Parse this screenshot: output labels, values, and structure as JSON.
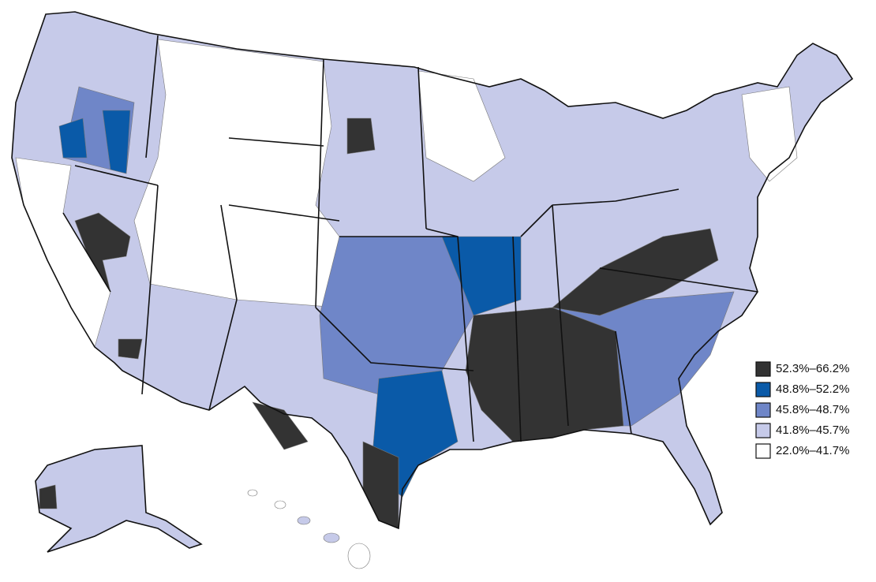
{
  "legend": {
    "items": [
      {
        "label": "52.3%–66.2%",
        "color": "#333333"
      },
      {
        "label": "48.8%–52.2%",
        "color": "#0a5aa8"
      },
      {
        "label": "45.8%–48.7%",
        "color": "#6f86c8"
      },
      {
        "label": "41.8%–45.7%",
        "color": "#c6cae9"
      },
      {
        "label": "22.0%–41.7%",
        "color": "#ffffff"
      }
    ]
  }
}
